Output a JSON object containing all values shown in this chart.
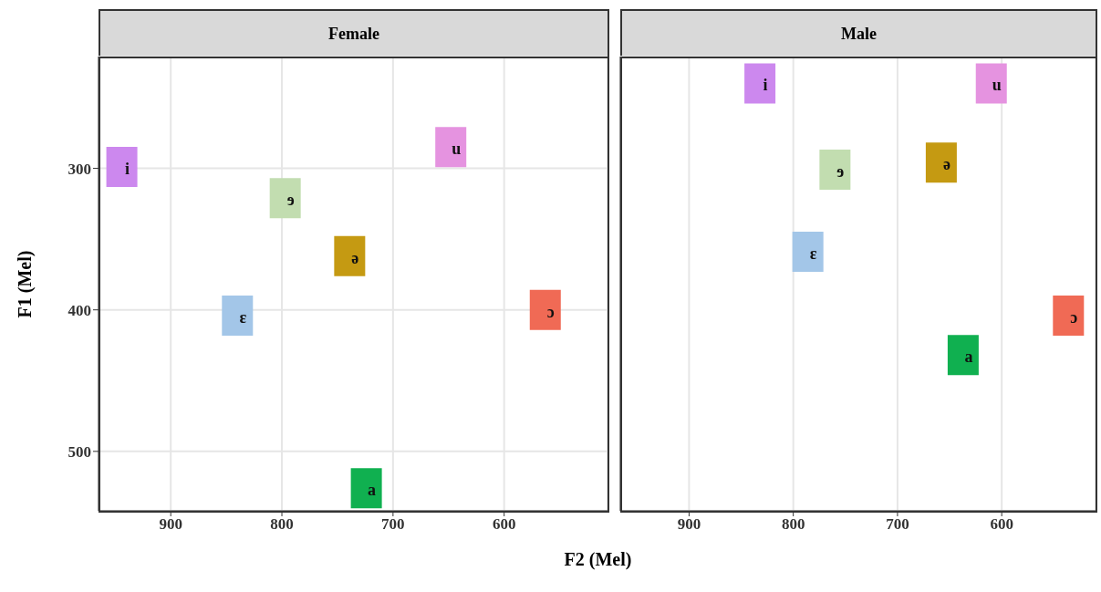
{
  "chart_data": [
    {
      "type": "scatter",
      "title": "Female",
      "xlabel": "F2 (Mel)",
      "ylabel": "F1 (Mel)",
      "xlim": [
        965,
        507
      ],
      "ylim": [
        542,
        221
      ],
      "xticks": [
        900,
        800,
        700,
        600
      ],
      "yticks": [
        300,
        400,
        500
      ],
      "grid": true,
      "legend": false,
      "marker": "square",
      "series": [
        {
          "name": "i",
          "color": "#cc88ee",
          "x": [
            944
          ],
          "values": [
            299
          ]
        },
        {
          "name": "u",
          "color": "#e593e0",
          "x": [
            648
          ],
          "values": [
            285
          ]
        },
        {
          "name": "ɘ",
          "color": "#c2ddb0",
          "x": [
            797
          ],
          "values": [
            321
          ]
        },
        {
          "name": "ə",
          "color": "#c59a12",
          "x": [
            739
          ],
          "values": [
            362
          ]
        },
        {
          "name": "ɛ",
          "color": "#a3c6e8",
          "x": [
            840
          ],
          "values": [
            404
          ]
        },
        {
          "name": "ɔ",
          "color": "#f06a55",
          "x": [
            563
          ],
          "values": [
            400
          ]
        },
        {
          "name": "a",
          "color": "#10b050",
          "x": [
            724
          ],
          "values": [
            526
          ]
        }
      ]
    },
    {
      "type": "scatter",
      "title": "Male",
      "xlim": [
        966,
        510
      ],
      "ylim": [
        542,
        221
      ],
      "xticks": [
        900,
        800,
        700,
        600
      ],
      "yticks": [
        300,
        400,
        500
      ],
      "tick_labels": "x",
      "grid": true,
      "legend": false,
      "marker": "square",
      "series": [
        {
          "name": "i",
          "color": "#cc88ee",
          "x": [
            832
          ],
          "values": [
            240
          ]
        },
        {
          "name": "u",
          "color": "#e593e0",
          "x": [
            610
          ],
          "values": [
            240
          ]
        },
        {
          "name": "ɘ",
          "color": "#c2ddb0",
          "x": [
            760
          ],
          "values": [
            301
          ]
        },
        {
          "name": "ə",
          "color": "#c59a12",
          "x": [
            658
          ],
          "values": [
            296
          ]
        },
        {
          "name": "ɛ",
          "color": "#a3c6e8",
          "x": [
            786
          ],
          "values": [
            359
          ]
        },
        {
          "name": "ɔ",
          "color": "#f06a55",
          "x": [
            536
          ],
          "values": [
            404
          ]
        },
        {
          "name": "a",
          "color": "#10b050",
          "x": [
            637
          ],
          "values": [
            432
          ]
        }
      ]
    }
  ]
}
